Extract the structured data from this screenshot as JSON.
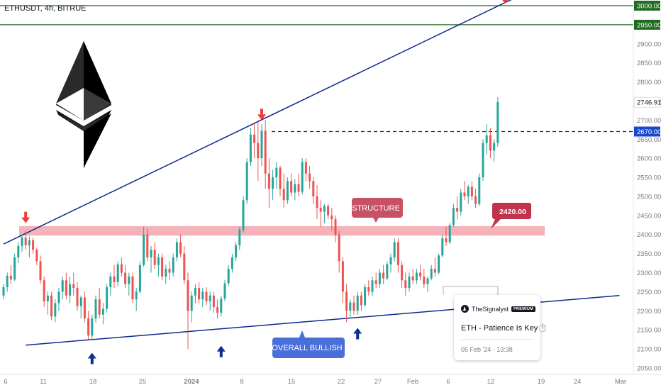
{
  "header": {
    "symbol": "ETHUSDT, 4h, BITRUE"
  },
  "colors": {
    "up": "#26a69a",
    "down": "#ef5350",
    "trend": "#0d2a8c",
    "zone": "#f4a5ad",
    "level": "#1f6b1f",
    "price_tag": "#1848cc",
    "callout": "#c0334a",
    "bullish": "#4a6fd8"
  },
  "chart_data": {
    "type": "candlestick",
    "title": "",
    "x_ticks": [
      "6",
      "11",
      "18",
      "25",
      "2024",
      "8",
      "15",
      "22",
      "27",
      "Feb",
      "6",
      "12",
      "19",
      "24",
      "Mar"
    ],
    "y_ticks": [
      2050,
      2100,
      2150,
      2200,
      2250,
      2300,
      2350,
      2400,
      2450,
      2500,
      2550,
      2600,
      2650,
      2700,
      2750,
      2800,
      2850,
      2900,
      2950,
      3000
    ],
    "ylim": [
      2040,
      3010
    ],
    "last_price": "2746.91",
    "levels": [
      {
        "label": "3000.00",
        "value": 3000,
        "style": "resistance"
      },
      {
        "label": "2950.00",
        "value": 2950,
        "style": "resistance"
      },
      {
        "label": "2670.00",
        "value": 2670,
        "style": "dashed"
      }
    ],
    "structure_zone": {
      "from": 2397,
      "to": 2422
    },
    "trendlines": [
      {
        "name": "upper",
        "from": [
          0,
          2375
        ],
        "to": [
          145,
          3050
        ]
      },
      {
        "name": "lower",
        "from": [
          6,
          2110
        ],
        "to": [
          167,
          2240
        ]
      }
    ],
    "annotations": {
      "structure": "STRUCTURE",
      "callout_price": "2420.00",
      "bullish": "OVERALL BULLISH"
    },
    "arrows": [
      {
        "dir": "down",
        "color": "red",
        "index": 6,
        "value": 2430
      },
      {
        "dir": "down",
        "color": "red",
        "index": 70,
        "value": 2700
      },
      {
        "dir": "down",
        "color": "red",
        "index": 136,
        "value": 3005
      },
      {
        "dir": "up",
        "color": "blue",
        "index": 24,
        "value": 2090
      },
      {
        "dir": "up",
        "color": "blue",
        "index": 59,
        "value": 2108
      },
      {
        "dir": "up",
        "color": "blue",
        "index": 96,
        "value": 2155
      }
    ],
    "candles": [
      [
        2240,
        2270,
        2230,
        2262
      ],
      [
        2262,
        2300,
        2250,
        2292
      ],
      [
        2292,
        2320,
        2270,
        2282
      ],
      [
        2282,
        2350,
        2278,
        2340
      ],
      [
        2340,
        2380,
        2325,
        2370
      ],
      [
        2370,
        2400,
        2355,
        2392
      ],
      [
        2392,
        2410,
        2360,
        2372
      ],
      [
        2372,
        2395,
        2340,
        2385
      ],
      [
        2385,
        2392,
        2350,
        2360
      ],
      [
        2360,
        2365,
        2320,
        2330
      ],
      [
        2330,
        2345,
        2270,
        2280
      ],
      [
        2280,
        2290,
        2210,
        2225
      ],
      [
        2225,
        2250,
        2190,
        2240
      ],
      [
        2240,
        2250,
        2175,
        2185
      ],
      [
        2185,
        2230,
        2170,
        2220
      ],
      [
        2220,
        2260,
        2200,
        2250
      ],
      [
        2250,
        2290,
        2230,
        2280
      ],
      [
        2280,
        2300,
        2230,
        2240
      ],
      [
        2240,
        2290,
        2220,
        2270
      ],
      [
        2270,
        2300,
        2240,
        2260
      ],
      [
        2260,
        2275,
        2200,
        2212
      ],
      [
        2212,
        2240,
        2180,
        2235
      ],
      [
        2235,
        2250,
        2170,
        2180
      ],
      [
        2180,
        2200,
        2125,
        2135
      ],
      [
        2135,
        2190,
        2125,
        2180
      ],
      [
        2180,
        2240,
        2170,
        2230
      ],
      [
        2230,
        2260,
        2180,
        2190
      ],
      [
        2190,
        2220,
        2165,
        2205
      ],
      [
        2205,
        2270,
        2195,
        2262
      ],
      [
        2262,
        2300,
        2240,
        2290
      ],
      [
        2290,
        2320,
        2260,
        2275
      ],
      [
        2275,
        2330,
        2265,
        2322
      ],
      [
        2322,
        2340,
        2290,
        2300
      ],
      [
        2300,
        2320,
        2260,
        2270
      ],
      [
        2270,
        2300,
        2240,
        2290
      ],
      [
        2290,
        2300,
        2220,
        2230
      ],
      [
        2230,
        2260,
        2200,
        2250
      ],
      [
        2250,
        2330,
        2245,
        2320
      ],
      [
        2320,
        2420,
        2315,
        2400
      ],
      [
        2400,
        2415,
        2330,
        2340
      ],
      [
        2340,
        2370,
        2300,
        2360
      ],
      [
        2360,
        2380,
        2310,
        2320
      ],
      [
        2320,
        2350,
        2290,
        2340
      ],
      [
        2340,
        2350,
        2280,
        2290
      ],
      [
        2290,
        2320,
        2270,
        2310
      ],
      [
        2310,
        2330,
        2280,
        2300
      ],
      [
        2300,
        2350,
        2290,
        2340
      ],
      [
        2340,
        2390,
        2330,
        2380
      ],
      [
        2380,
        2400,
        2340,
        2350
      ],
      [
        2350,
        2370,
        2270,
        2280
      ],
      [
        2280,
        2300,
        2100,
        2200
      ],
      [
        2200,
        2250,
        2170,
        2240
      ],
      [
        2240,
        2270,
        2220,
        2260
      ],
      [
        2260,
        2275,
        2220,
        2230
      ],
      [
        2230,
        2260,
        2210,
        2250
      ],
      [
        2250,
        2262,
        2215,
        2225
      ],
      [
        2225,
        2250,
        2200,
        2240
      ],
      [
        2240,
        2250,
        2195,
        2210
      ],
      [
        2210,
        2230,
        2180,
        2195
      ],
      [
        2195,
        2240,
        2185,
        2232
      ],
      [
        2232,
        2280,
        2225,
        2272
      ],
      [
        2272,
        2320,
        2265,
        2310
      ],
      [
        2310,
        2350,
        2300,
        2340
      ],
      [
        2340,
        2380,
        2330,
        2372
      ],
      [
        2372,
        2420,
        2360,
        2412
      ],
      [
        2412,
        2500,
        2405,
        2490
      ],
      [
        2490,
        2600,
        2480,
        2590
      ],
      [
        2590,
        2680,
        2580,
        2662
      ],
      [
        2662,
        2690,
        2600,
        2640
      ],
      [
        2640,
        2700,
        2540,
        2600
      ],
      [
        2600,
        2690,
        2580,
        2672
      ],
      [
        2672,
        2700,
        2520,
        2560
      ],
      [
        2560,
        2600,
        2470,
        2520
      ],
      [
        2520,
        2570,
        2490,
        2550
      ],
      [
        2550,
        2590,
        2520,
        2575
      ],
      [
        2575,
        2580,
        2500,
        2520
      ],
      [
        2520,
        2560,
        2470,
        2490
      ],
      [
        2490,
        2550,
        2480,
        2540
      ],
      [
        2540,
        2560,
        2500,
        2510
      ],
      [
        2510,
        2545,
        2490,
        2532
      ],
      [
        2532,
        2560,
        2500,
        2512
      ],
      [
        2512,
        2600,
        2505,
        2590
      ],
      [
        2590,
        2600,
        2540,
        2560
      ],
      [
        2560,
        2580,
        2520,
        2540
      ],
      [
        2540,
        2550,
        2480,
        2500
      ],
      [
        2500,
        2530,
        2440,
        2470
      ],
      [
        2470,
        2490,
        2420,
        2460
      ],
      [
        2460,
        2480,
        2430,
        2475
      ],
      [
        2475,
        2480,
        2440,
        2450
      ],
      [
        2450,
        2470,
        2410,
        2440
      ],
      [
        2440,
        2450,
        2380,
        2400
      ],
      [
        2400,
        2410,
        2300,
        2330
      ],
      [
        2330,
        2340,
        2220,
        2250
      ],
      [
        2250,
        2270,
        2170,
        2200
      ],
      [
        2200,
        2230,
        2180,
        2222
      ],
      [
        2222,
        2240,
        2190,
        2200
      ],
      [
        2200,
        2250,
        2190,
        2240
      ],
      [
        2240,
        2250,
        2200,
        2215
      ],
      [
        2215,
        2270,
        2210,
        2262
      ],
      [
        2262,
        2280,
        2240,
        2250
      ],
      [
        2250,
        2290,
        2240,
        2280
      ],
      [
        2280,
        2300,
        2260,
        2270
      ],
      [
        2270,
        2310,
        2260,
        2300
      ],
      [
        2300,
        2320,
        2270,
        2285
      ],
      [
        2285,
        2330,
        2280,
        2322
      ],
      [
        2322,
        2350,
        2300,
        2340
      ],
      [
        2340,
        2390,
        2330,
        2380
      ],
      [
        2380,
        2390,
        2300,
        2320
      ],
      [
        2320,
        2330,
        2260,
        2280
      ],
      [
        2280,
        2300,
        2240,
        2260
      ],
      [
        2260,
        2300,
        2250,
        2290
      ],
      [
        2290,
        2310,
        2270,
        2280
      ],
      [
        2280,
        2310,
        2270,
        2300
      ],
      [
        2300,
        2320,
        2280,
        2290
      ],
      [
        2290,
        2310,
        2260,
        2270
      ],
      [
        2270,
        2290,
        2250,
        2285
      ],
      [
        2285,
        2320,
        2280,
        2310
      ],
      [
        2310,
        2340,
        2290,
        2300
      ],
      [
        2300,
        2350,
        2295,
        2345
      ],
      [
        2345,
        2400,
        2340,
        2390
      ],
      [
        2390,
        2420,
        2370,
        2380
      ],
      [
        2380,
        2430,
        2375,
        2425
      ],
      [
        2425,
        2480,
        2420,
        2470
      ],
      [
        2470,
        2500,
        2440,
        2460
      ],
      [
        2460,
        2520,
        2450,
        2510
      ],
      [
        2510,
        2540,
        2490,
        2500
      ],
      [
        2500,
        2530,
        2480,
        2525
      ],
      [
        2525,
        2540,
        2490,
        2500
      ],
      [
        2500,
        2520,
        2470,
        2480
      ],
      [
        2480,
        2560,
        2475,
        2550
      ],
      [
        2550,
        2650,
        2540,
        2640
      ],
      [
        2640,
        2690,
        2610,
        2660
      ],
      [
        2660,
        2680,
        2600,
        2620
      ],
      [
        2620,
        2650,
        2590,
        2640
      ],
      [
        2640,
        2760,
        2630,
        2747
      ]
    ]
  },
  "card": {
    "brand": "TheSignalyst",
    "badge": "PREMIUM",
    "title": "ETH - Patience Is Key⏱️",
    "date": "05 Feb '24 · 13:38"
  }
}
